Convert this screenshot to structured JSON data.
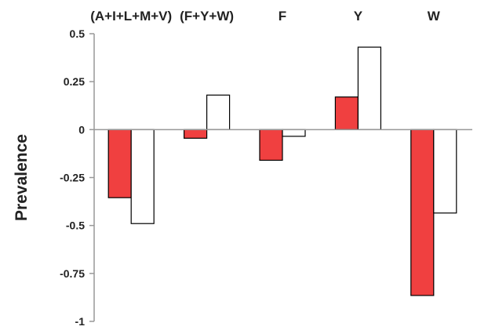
{
  "chart_data": {
    "type": "bar",
    "categories": [
      "(A+I+L+M+V)",
      "(F+Y+W)",
      "F",
      "Y",
      "W"
    ],
    "series": [
      {
        "color": "#f04040",
        "values": [
          -0.355,
          -0.045,
          -0.16,
          0.17,
          -0.865
        ]
      },
      {
        "color": "#ffffff",
        "values": [
          -0.49,
          0.18,
          -0.035,
          0.43,
          -0.435
        ]
      }
    ],
    "ylabel": "Prevalence",
    "ylim": [
      -1,
      0.5
    ],
    "yticks": [
      0.5,
      0.25,
      0,
      -0.25,
      -0.5,
      -0.75,
      -1
    ],
    "ytick_labels": [
      "0.5",
      "0.25",
      "0",
      "-0.25",
      "-0.5",
      "-0.75",
      "-1"
    ],
    "category_labels_position": "top",
    "grid": false,
    "legend": false
  }
}
